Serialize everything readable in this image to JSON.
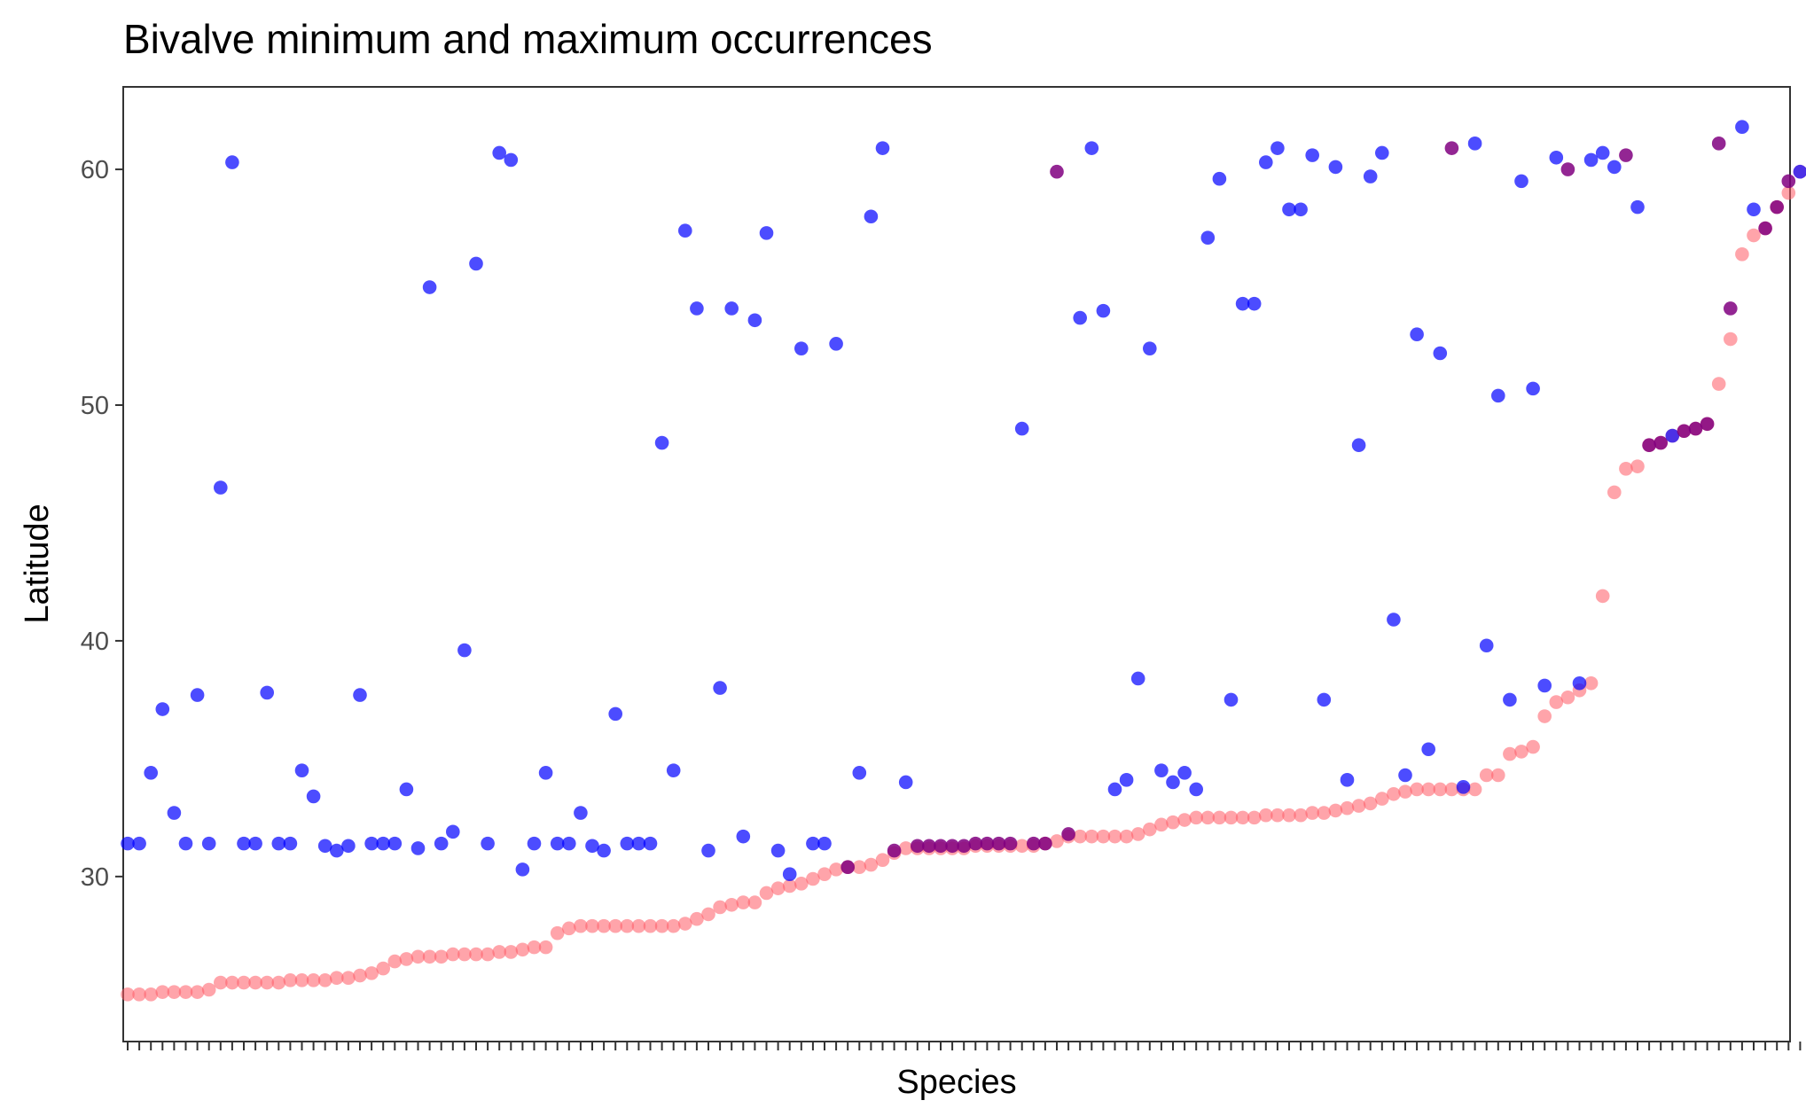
{
  "chart_data": {
    "type": "scatter",
    "title": "Bivalve minimum and maximum occurrences",
    "xlabel": "Species",
    "ylabel": "Latitude",
    "ylim": [
      23,
      63.5
    ],
    "yticks": [
      30,
      40,
      50,
      60
    ],
    "grid": false,
    "x_tick_labels_shown": false,
    "colors": {
      "max": "#0000ff",
      "min": "#ff5a64",
      "overlap": "#800080"
    },
    "point_alpha": {
      "max": 0.7,
      "min": 0.55
    },
    "series": [
      {
        "name": "max",
        "values": [
          31.4,
          31.4,
          34.4,
          37.1,
          32.7,
          31.4,
          37.7,
          31.4,
          46.5,
          60.3,
          31.4,
          31.4,
          37.8,
          31.4,
          31.4,
          34.5,
          33.4,
          31.3,
          31.1,
          31.3,
          37.7,
          31.4,
          31.4,
          31.4,
          33.7,
          31.2,
          55.0,
          31.4,
          31.9,
          39.6,
          56.0,
          31.4,
          60.7,
          60.4,
          30.3,
          31.4,
          34.4,
          31.4,
          31.4,
          32.7,
          31.3,
          31.1,
          36.9,
          31.4,
          31.4,
          31.4,
          48.4,
          34.5,
          57.4,
          54.1,
          31.1,
          38.0,
          54.1,
          31.7,
          53.6,
          57.3,
          31.1,
          30.1,
          52.4,
          31.4,
          31.4,
          52.6,
          30.4,
          34.4,
          58.0,
          60.9,
          31.1,
          34.0,
          31.3,
          31.3,
          31.3,
          31.3,
          31.3,
          31.4,
          31.4,
          31.4,
          31.4,
          49.0,
          31.4,
          31.4,
          59.9,
          31.8,
          53.7,
          60.9,
          54.0,
          33.7,
          34.1,
          38.4,
          52.4,
          34.5,
          34.0,
          34.4,
          33.7,
          57.1,
          59.6,
          37.5,
          54.3,
          54.3,
          60.3,
          60.9,
          58.3,
          58.3,
          60.6,
          37.5,
          60.1,
          34.1,
          48.3,
          59.7,
          60.7,
          40.9,
          34.3,
          53.0,
          35.4,
          52.2,
          60.9,
          33.8,
          61.1,
          39.8,
          50.4,
          37.5,
          59.5,
          50.7,
          38.1,
          60.5,
          60.0,
          38.2,
          60.4,
          60.7,
          60.1,
          60.6,
          58.4,
          48.3,
          48.4,
          48.7,
          48.9,
          49.0,
          49.2,
          61.1,
          54.1,
          61.8,
          58.3,
          57.5,
          58.4,
          59.5,
          59.9
        ],
        "overlap_indices": [
          62,
          66,
          68,
          69,
          70,
          71,
          72,
          73,
          74,
          75,
          76,
          78,
          79,
          80,
          81,
          114,
          124,
          129,
          131,
          132,
          134,
          135,
          136,
          137,
          138,
          141,
          142,
          143
        ]
      },
      {
        "name": "min",
        "values": [
          25.0,
          25.0,
          25.0,
          25.1,
          25.1,
          25.1,
          25.1,
          25.2,
          25.5,
          25.5,
          25.5,
          25.5,
          25.5,
          25.5,
          25.6,
          25.6,
          25.6,
          25.6,
          25.7,
          25.7,
          25.8,
          25.9,
          26.1,
          26.4,
          26.5,
          26.6,
          26.6,
          26.6,
          26.7,
          26.7,
          26.7,
          26.7,
          26.8,
          26.8,
          26.9,
          27.0,
          27.0,
          27.6,
          27.8,
          27.9,
          27.9,
          27.9,
          27.9,
          27.9,
          27.9,
          27.9,
          27.9,
          27.9,
          28.0,
          28.2,
          28.4,
          28.7,
          28.8,
          28.9,
          28.9,
          29.3,
          29.5,
          29.6,
          29.7,
          29.9,
          30.1,
          30.3,
          30.4,
          30.4,
          30.5,
          30.7,
          31.0,
          31.2,
          31.2,
          31.2,
          31.2,
          31.2,
          31.2,
          31.3,
          31.3,
          31.3,
          31.3,
          31.3,
          31.3,
          31.4,
          31.5,
          31.7,
          31.7,
          31.7,
          31.7,
          31.7,
          31.7,
          31.8,
          32.0,
          32.2,
          32.3,
          32.4,
          32.5,
          32.5,
          32.5,
          32.5,
          32.5,
          32.5,
          32.6,
          32.6,
          32.6,
          32.6,
          32.7,
          32.7,
          32.8,
          32.9,
          33.0,
          33.1,
          33.3,
          33.5,
          33.6,
          33.7,
          33.7,
          33.7,
          33.7,
          33.7,
          33.7,
          34.3,
          34.3,
          35.2,
          35.3,
          35.5,
          36.8,
          37.4,
          37.6,
          37.9,
          38.2,
          41.9,
          46.3,
          47.3,
          47.4,
          48.3,
          48.4,
          48.7,
          48.9,
          49.0,
          49.2,
          50.9,
          52.8,
          56.4,
          57.2,
          57.5,
          58.4,
          59.0,
          59.9
        ]
      }
    ]
  }
}
